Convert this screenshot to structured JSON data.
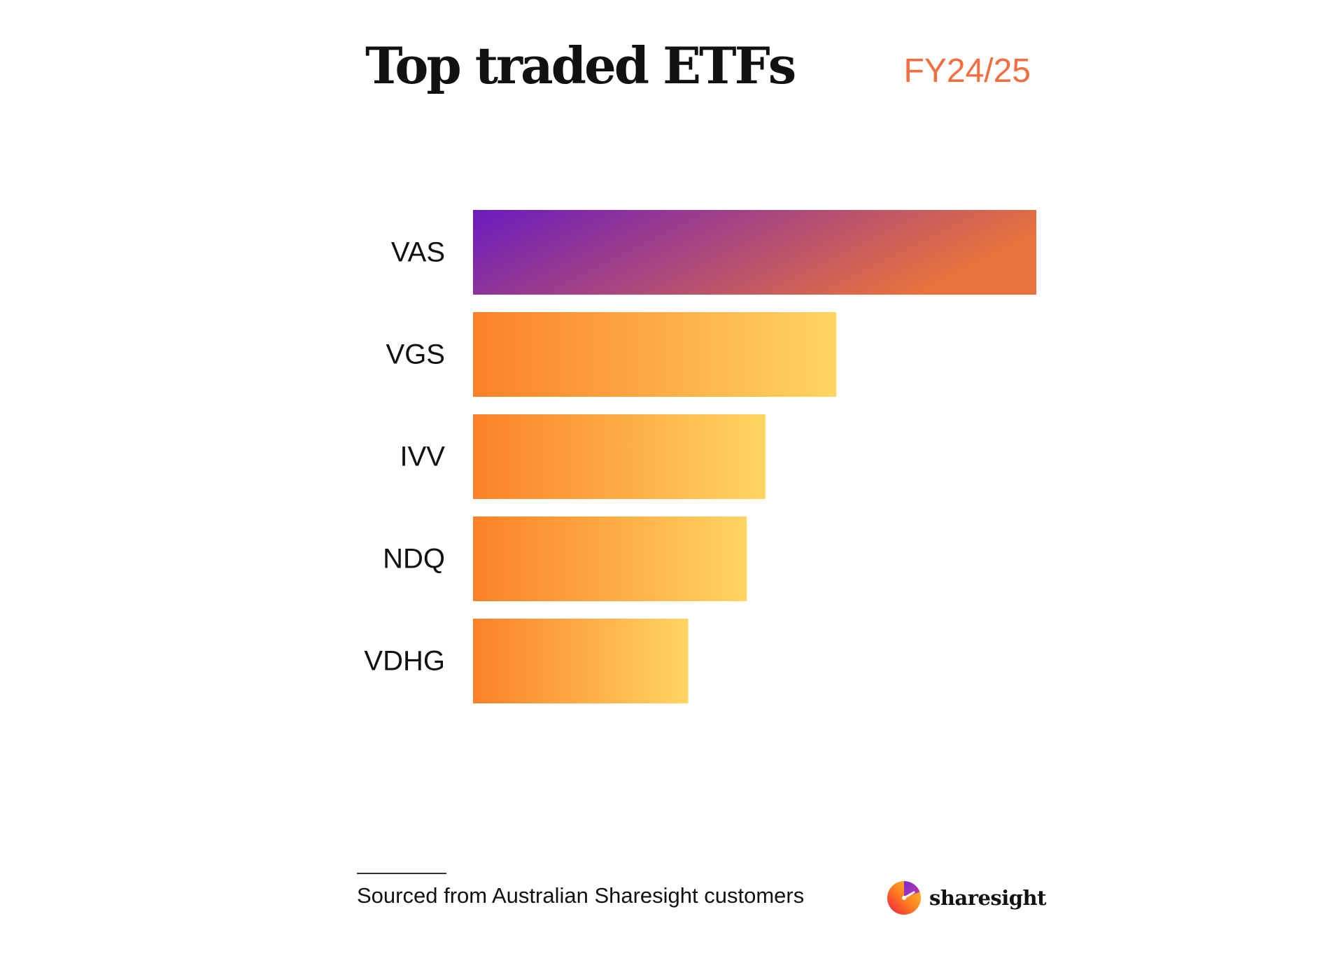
{
  "header": {
    "title": "Top traded ETFs",
    "period": "FY24/25"
  },
  "chart_data": {
    "type": "bar",
    "orientation": "horizontal",
    "title": "Top traded ETFs",
    "subtitle": "FY24/25",
    "categories": [
      "VAS",
      "VGS",
      "IVV",
      "NDQ",
      "VDHG"
    ],
    "values": [
      100,
      64.5,
      51.9,
      48.6,
      38.2
    ],
    "xlim": [
      0,
      100
    ],
    "grid": false,
    "axes_visible": false,
    "colors": {
      "highlight_start": "#6a1bbf",
      "highlight_end": "#e8733c",
      "bar_start": "#fb8128",
      "bar_end": "#ffd562"
    }
  },
  "footer": {
    "source": "Sourced from Australian Sharesight customers",
    "brand": "sharesight"
  }
}
